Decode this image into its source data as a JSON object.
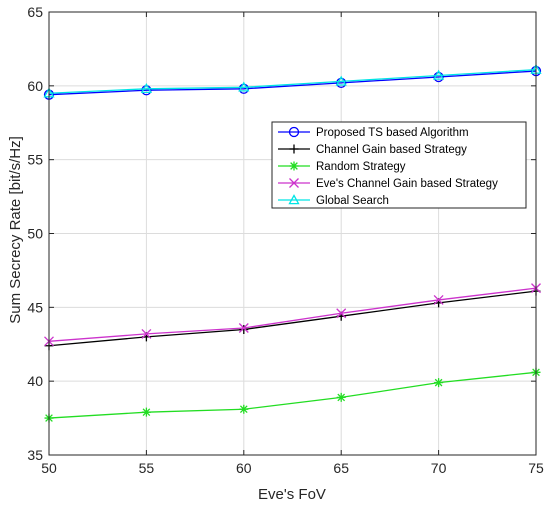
{
  "chart_data": {
    "type": "line",
    "xlabel": "Eve's FoV",
    "ylabel": "Sum Secrecy Rate [bit/s/Hz]",
    "xlim": [
      50,
      75
    ],
    "ylim": [
      35,
      65
    ],
    "x": [
      50,
      55,
      60,
      65,
      70,
      75
    ],
    "x_ticks": [
      "50",
      "55",
      "60",
      "65",
      "70",
      "75"
    ],
    "y_ticks": [
      "35",
      "40",
      "45",
      "50",
      "55",
      "60",
      "65"
    ],
    "grid": true,
    "legend_position": "upper-right",
    "series": [
      {
        "name": "Proposed TS based Algorithm",
        "values": [
          59.4,
          59.7,
          59.8,
          60.2,
          60.6,
          61.0
        ],
        "color": "#0000ff",
        "marker": "circle"
      },
      {
        "name": "Channel Gain based Strategy",
        "values": [
          42.4,
          43.0,
          43.5,
          44.4,
          45.3,
          46.1
        ],
        "color": "#000000",
        "marker": "plus"
      },
      {
        "name": "Random Strategy",
        "values": [
          37.5,
          37.9,
          38.1,
          38.9,
          39.9,
          40.6
        ],
        "color": "#22dd22",
        "marker": "asterisk"
      },
      {
        "name": "Eve's Channel Gain based Strategy",
        "values": [
          42.7,
          43.2,
          43.6,
          44.6,
          45.5,
          46.3
        ],
        "color": "#cc33cc",
        "marker": "x"
      },
      {
        "name": "Global Search",
        "values": [
          59.5,
          59.8,
          59.9,
          60.3,
          60.7,
          61.1
        ],
        "color": "#00e5e5",
        "marker": "triangle"
      }
    ]
  }
}
